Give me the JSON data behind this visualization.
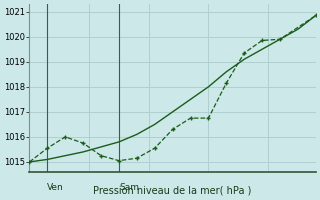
{
  "title": "Pression niveau de la mer( hPa )",
  "bg_color": "#cce8e8",
  "grid_color": "#b0d0d0",
  "line_color": "#1a5c1a",
  "yticks": [
    1015,
    1016,
    1017,
    1018,
    1019,
    1020,
    1021
  ],
  "ylim": [
    1014.6,
    1021.3
  ],
  "xlim": [
    0,
    48
  ],
  "ven_x": 3,
  "sam_x": 15,
  "line_smooth": {
    "x": [
      0,
      3,
      6,
      9,
      12,
      15,
      18,
      21,
      24,
      27,
      30,
      33,
      36,
      39,
      42,
      45,
      48
    ],
    "y": [
      1015.0,
      1015.1,
      1015.25,
      1015.4,
      1015.6,
      1015.8,
      1016.1,
      1016.5,
      1017.0,
      1017.5,
      1018.0,
      1018.6,
      1019.1,
      1019.5,
      1019.9,
      1020.3,
      1020.85
    ]
  },
  "line_jagged": {
    "x": [
      0,
      3,
      6,
      9,
      12,
      15,
      18,
      21,
      24,
      27,
      30,
      33,
      36,
      39,
      42,
      48
    ],
    "y": [
      1015.0,
      1015.55,
      1016.0,
      1015.75,
      1015.25,
      1015.05,
      1015.15,
      1015.55,
      1016.3,
      1016.75,
      1016.75,
      1018.15,
      1019.35,
      1019.85,
      1019.9,
      1020.85
    ]
  }
}
